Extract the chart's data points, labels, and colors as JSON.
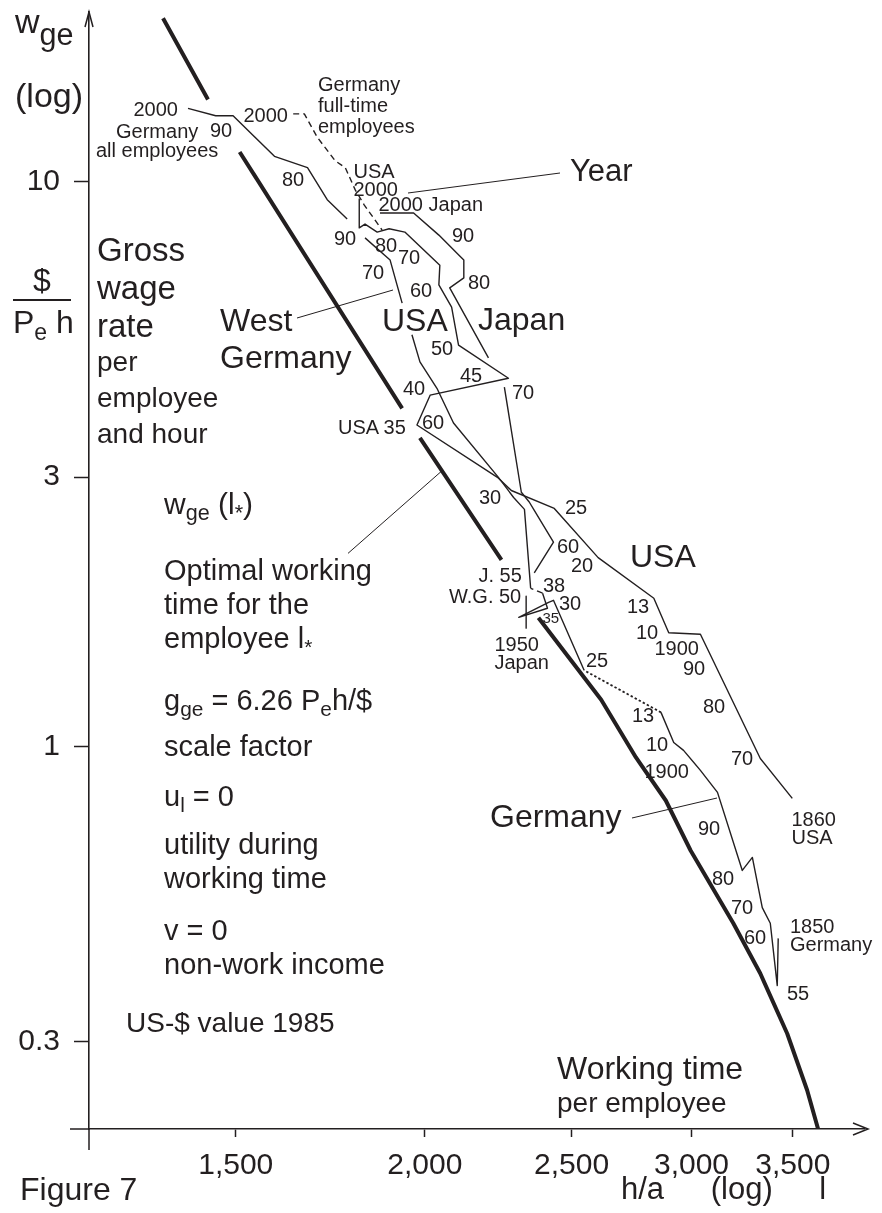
{
  "chart_data": {
    "type": "line",
    "xlabel": "h/a (log) l",
    "ylabel": "w$_{ge}$\n(log)",
    "log": "xy",
    "xlim": [
      1200,
      3900
    ],
    "xticks": [
      {
        "value": 1500,
        "label": "1,500"
      },
      {
        "value": 2000,
        "label": "2,000"
      },
      {
        "value": 2500,
        "label": "2,500"
      },
      {
        "value": 3000,
        "label": "3,000"
      },
      {
        "value": 3500,
        "label": "3,500"
      }
    ],
    "ylim": [
      0.21,
      20
    ],
    "yticks": [
      0.3,
      1,
      3,
      10
    ],
    "series": [
      {
        "color": "#231f20",
        "x": [
          1343,
          1438,
          1470,
          1509,
          1932,
          1958,
          1985,
          2247,
          2310,
          2377,
          2615,
          2757,
          2885,
          2996,
          3197,
          3331,
          3470,
          3577,
          3637
        ],
        "values": [
          19.5,
          14.0,
          null,
          11.3,
          3.97,
          null,
          3.52,
          2.14,
          null,
          1.69,
          1.21,
          0.956,
          0.802,
          0.654,
          0.486,
          0.396,
          0.31,
          0.246,
          0.21
        ]
      },
      {
        "name": "Germany\nall employees",
        "color": "#231f20",
        "x": [
          1395,
          1455,
          1494,
          1591,
          1673,
          1724,
          1777
        ],
        "values": [
          13.5,
          13.1,
          13.1,
          11.1,
          10.6,
          9.3,
          8.6
        ]
      },
      {
        "name": "Germany\nfull-time\nemployees",
        "color": "#231f20",
        "line_style": "dashed",
        "x": [
          1637,
          1665,
          1698,
          1745,
          1772,
          1799,
          1824,
          1874
        ],
        "values": [
          13.2,
          13.2,
          12.0,
          10.9,
          10.6,
          9.68,
          9.1,
          8.22
        ]
      },
      {
        "name": "USA",
        "color": "#231f20",
        "x": [
          1810,
          1810,
          1826,
          1860,
          1894,
          1940,
          2046,
          2043,
          2083,
          2105,
          2271,
          2016,
          1976,
          2236,
          2281,
          2435,
          2603,
          2833,
          2898,
          3041,
          3331,
          3497
        ],
        "values": [
          9.33,
          8.29,
          8.42,
          8.15,
          8.26,
          8.15,
          7.12,
          6.57,
          6.0,
          5.14,
          4.49,
          4.19,
          3.71,
          2.99,
          2.84,
          2.64,
          2.16,
          1.83,
          1.59,
          1.58,
          0.952,
          0.809
        ]
      },
      {
        "name": "Japan",
        "color": "#231f20",
        "x": [
          1868,
          1966,
          2043,
          2122,
          2122,
          2077,
          2203,
          2230,
          2257,
          2316,
          2344,
          2432,
          2362,
          2345,
          2333,
          2333
        ],
        "values": [
          8.81,
          8.81,
          8.05,
          7.27,
          6.76,
          6.49,
          4.88,
          null,
          4.33,
          2.82,
          2.71,
          2.3,
          2.03,
          null,
          1.845,
          1.62
        ]
      },
      {
        "name": "West\nGermany",
        "color": "#231f20",
        "x": [
          1826,
          1897,
          1917,
          1932,
          1946,
          1961,
          1985,
          2037,
          2089,
          2236,
          2289,
          2327,
          2349
        ],
        "values": [
          7.96,
          7.27,
          6.57,
          6.1,
          null,
          5.36,
          4.8,
          4.31,
          3.74,
          3.0,
          2.76,
          2.63,
          1.906
        ]
      },
      {
        "name": "Germany",
        "color": "#231f20",
        "x": [
          3423,
          3418,
          3382,
          3341,
          3291,
          3241,
          3121,
          3041,
          2964,
          2920,
          2864
        ],
        "values": [
          0.457,
          0.377,
          0.486,
          0.518,
          0.636,
          0.603,
          0.829,
          0.907,
          0.984,
          1.016,
          1.149
        ]
      },
      {
        "color": "#231f20",
        "line_style": "dotted",
        "x": [
          2864,
          2548
        ],
        "values": [
          1.149,
          1.364
        ]
      },
      {
        "color": "#231f20",
        "x": [
          2548,
          2432,
          2414,
          2307,
          2410,
          2392
        ],
        "values": [
          1.364,
          1.815,
          1.8,
          1.693,
          1.757,
          1.868
        ]
      },
      {
        "color": "#231f20",
        "line_style": "dashed",
        "x": [
          2392,
          2349
        ],
        "values": [
          1.868,
          1.906
        ]
      }
    ],
    "annotations": [
      "$",
      "P$_{e}$ h",
      "Gross\nwage\nrate",
      "per\nemployee\nand hour",
      "Year",
      "w$_{ge}$ (l$_{*}$)",
      {
        "text": "Optimal working\ntime for the\nemployee l$_{*}$",
        "x": 2052,
        "y": 3.08
      },
      "g$_{ge}$ = 6.26 P$_{e}$h/$",
      "scale factor",
      "u$_{l}$ = 0",
      "utility during\nworking time",
      "v = 0",
      "non-work income",
      "US-$ value 1985",
      "Working time",
      "per employee",
      "Figure 7",
      "2000",
      "90",
      "80",
      "2000",
      "USA\n2000",
      "2000 Japan",
      "90",
      "80",
      "70",
      "70",
      "60",
      "50",
      "45",
      "40",
      "USA 35",
      "60",
      "70",
      "90",
      "80",
      "30",
      "25",
      "60",
      "20",
      "J. 55",
      "38",
      "W.G. 50",
      "30",
      "35",
      "1950\nJapan",
      "25",
      "13",
      "10",
      "1900",
      "90",
      "80",
      "70",
      "1860\nUSA",
      "13",
      "10",
      "1900",
      "90",
      "80",
      "70",
      "60",
      "1850\nGermany",
      "55"
    ]
  }
}
